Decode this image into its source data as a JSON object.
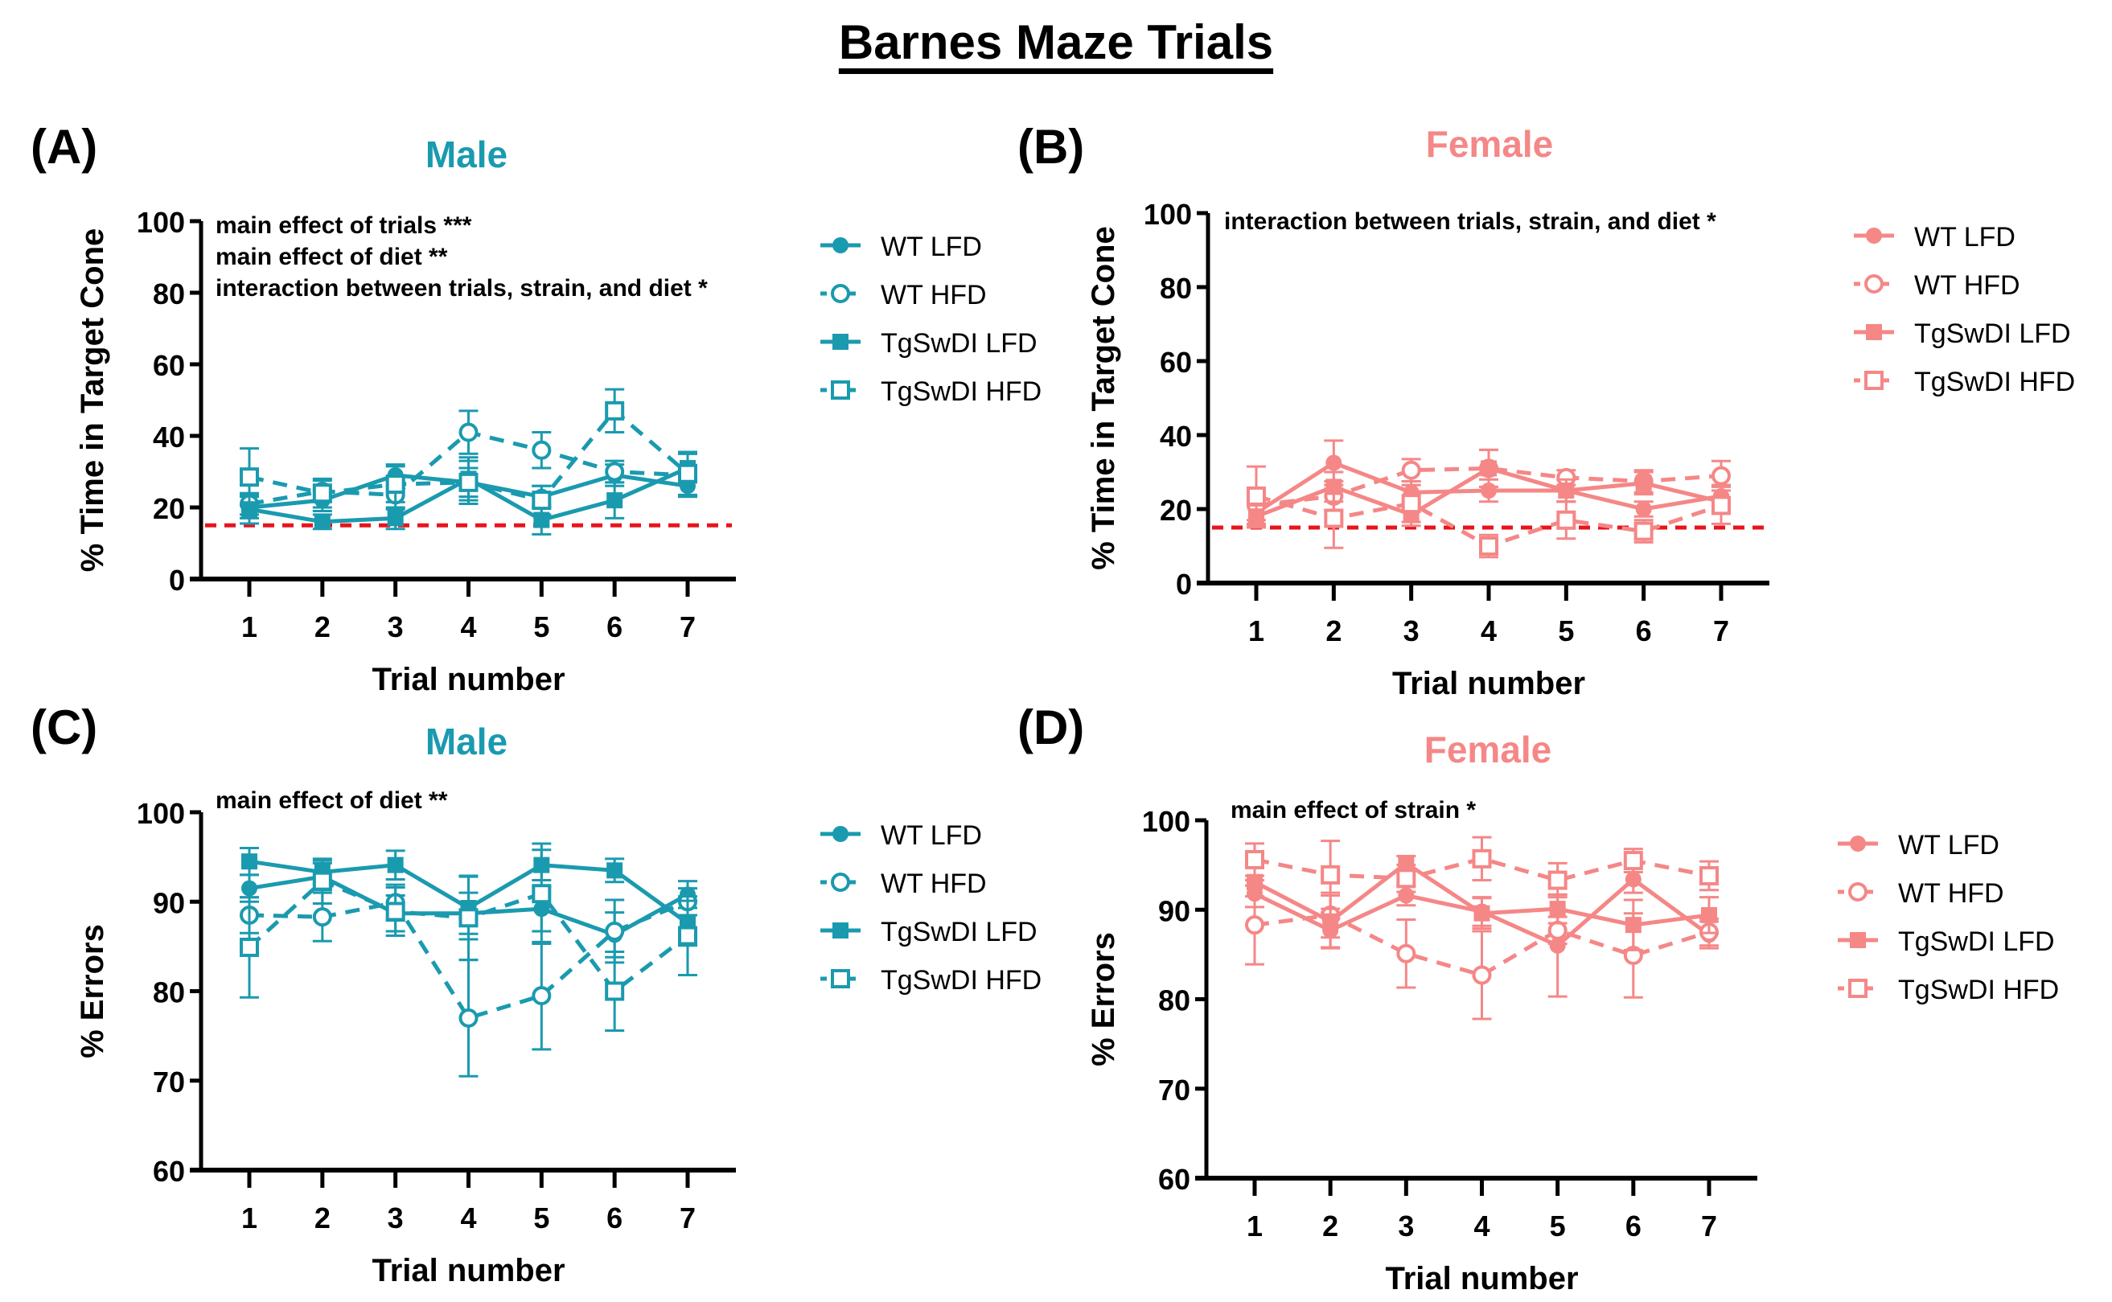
{
  "figure_title": "Barnes Maze Trials",
  "colors": {
    "male": "#1a9aaf",
    "female": "#f58787",
    "chance_line": "#e8141c",
    "axis": "#000000"
  },
  "chart_data": [
    {
      "id": "A",
      "panel_label": "(A)",
      "subtitle": "Male",
      "type": "line",
      "xlabel": "Trial number",
      "ylabel": "% Time in Target Cone",
      "x": [
        1,
        2,
        3,
        4,
        5,
        6,
        7
      ],
      "ylim": [
        0,
        100
      ],
      "yticks": [
        0,
        20,
        40,
        60,
        80,
        100
      ],
      "reference_line": 15,
      "annotations": [
        "main effect of trials ***",
        "main effect of diet **",
        "interaction between trials, strain, and diet *"
      ],
      "legend_position": "right",
      "series": [
        {
          "name": "WT LFD",
          "marker": "filled-circle",
          "line": "solid",
          "values": [
            20,
            22,
            29,
            27,
            23,
            29,
            26
          ],
          "error": [
            3,
            3,
            3,
            4,
            3,
            3,
            3
          ]
        },
        {
          "name": "WT HFD",
          "marker": "open-circle",
          "line": "dashed",
          "values": [
            21,
            24.5,
            23.5,
            41,
            36,
            30,
            29
          ],
          "error": [
            3,
            3,
            4,
            6,
            5,
            3,
            6
          ]
        },
        {
          "name": "TgSwDI LFD",
          "marker": "filled-square",
          "line": "solid",
          "values": [
            19.5,
            16,
            17,
            28,
            16.5,
            22,
            31
          ],
          "error": [
            4,
            2,
            3,
            6,
            4,
            5,
            4
          ]
        },
        {
          "name": "TgSwDI HFD",
          "marker": "open-square",
          "line": "dashed",
          "values": [
            28.5,
            24,
            26.5,
            27,
            22,
            47,
            29.5
          ],
          "error": [
            8,
            4,
            5,
            6,
            4,
            6,
            6
          ]
        }
      ]
    },
    {
      "id": "B",
      "panel_label": "(B)",
      "subtitle": "Female",
      "type": "line",
      "xlabel": "Trial number",
      "ylabel": "% Time in Target Cone",
      "x": [
        1,
        2,
        3,
        4,
        5,
        6,
        7
      ],
      "ylim": [
        0,
        100
      ],
      "yticks": [
        0,
        20,
        40,
        60,
        80,
        100
      ],
      "reference_line": 15,
      "annotations": [
        "interaction between trials, strain, and diet *"
      ],
      "legend_position": "right",
      "series": [
        {
          "name": "WT LFD",
          "marker": "filled-circle",
          "line": "solid",
          "values": [
            19,
            32.5,
            24.5,
            25,
            25,
            20,
            23.5
          ],
          "error": [
            3,
            6,
            3,
            3,
            3,
            2,
            3
          ]
        },
        {
          "name": "WT HFD",
          "marker": "open-circle",
          "line": "dashed",
          "values": [
            21,
            23.5,
            30.5,
            31,
            28.5,
            27.5,
            29
          ],
          "error": [
            4,
            4,
            3,
            5,
            2,
            3,
            4
          ]
        },
        {
          "name": "TgSwDI LFD",
          "marker": "filled-square",
          "line": "solid",
          "values": [
            18,
            26,
            18.5,
            31,
            25,
            27,
            22
          ],
          "error": [
            3,
            4,
            3,
            5,
            3,
            3,
            3
          ]
        },
        {
          "name": "TgSwDI HFD",
          "marker": "open-square",
          "line": "dashed",
          "values": [
            23.5,
            17.5,
            21.5,
            10,
            17,
            14,
            21
          ],
          "error": [
            8,
            8,
            5,
            3,
            5,
            3,
            5
          ]
        }
      ]
    },
    {
      "id": "C",
      "panel_label": "(C)",
      "subtitle": "Male",
      "type": "line",
      "xlabel": "Trial number",
      "ylabel": "% Errors",
      "x": [
        1,
        2,
        3,
        4,
        5,
        6,
        7
      ],
      "ylim": [
        60,
        100
      ],
      "yticks": [
        60,
        70,
        80,
        90,
        100
      ],
      "reference_line": null,
      "annotations": [
        "main effect of diet **"
      ],
      "legend_position": "right",
      "series": [
        {
          "name": "WT LFD",
          "marker": "filled-circle",
          "line": "solid",
          "values": [
            91.5,
            92.8,
            88.7,
            88.7,
            89.2,
            86.3,
            90.8
          ],
          "error": [
            1.5,
            1.5,
            2,
            2.3,
            2.5,
            2.5,
            1.5
          ]
        },
        {
          "name": "WT HFD",
          "marker": "open-circle",
          "line": "dashed",
          "values": [
            88.5,
            88.3,
            89.9,
            77,
            79.5,
            86.7,
            90
          ],
          "error": [
            2,
            2.7,
            2,
            6.5,
            6,
            3.5,
            1.5
          ]
        },
        {
          "name": "TgSwDI LFD",
          "marker": "filled-square",
          "line": "solid",
          "values": [
            94.5,
            93.3,
            94.1,
            89.3,
            94.1,
            93.5,
            87.6
          ],
          "error": [
            1.5,
            1.3,
            1.6,
            3.5,
            1.7,
            1.3,
            2.5
          ]
        },
        {
          "name": "TgSwDI HFD",
          "marker": "open-square",
          "line": "dashed",
          "values": [
            84.9,
            92.3,
            88.9,
            88.2,
            90.9,
            80,
            86.2
          ],
          "error": [
            5.6,
            2.5,
            2.7,
            4.7,
            5.6,
            4.4,
            4.4
          ]
        }
      ]
    },
    {
      "id": "D",
      "panel_label": "(D)",
      "subtitle": "Female",
      "type": "line",
      "xlabel": "Trial number",
      "ylabel": "% Errors",
      "x": [
        1,
        2,
        3,
        4,
        5,
        6,
        7
      ],
      "ylim": [
        60,
        100
      ],
      "yticks": [
        60,
        70,
        80,
        90,
        100
      ],
      "reference_line": null,
      "annotations": [
        "main effect of strain *"
      ],
      "legend_position": "right",
      "series": [
        {
          "name": "WT LFD",
          "marker": "filled-circle",
          "line": "solid",
          "values": [
            91.8,
            87.7,
            91.6,
            89.8,
            86,
            93.4,
            87.2
          ],
          "error": [
            1.5,
            2,
            1.1,
            1.6,
            5.7,
            1.5,
            1.5
          ]
        },
        {
          "name": "WT HFD",
          "marker": "open-circle",
          "line": "dashed",
          "values": [
            88.3,
            89.4,
            85.1,
            82.7,
            87.7,
            84.9,
            87.5
          ],
          "error": [
            4.4,
            2.5,
            3.8,
            4.9,
            1.5,
            4.7,
            1.5
          ]
        },
        {
          "name": "TgSwDI LFD",
          "marker": "filled-square",
          "line": "solid",
          "values": [
            93.1,
            88.7,
            95.2,
            89.6,
            90.1,
            88.3,
            89.4
          ],
          "error": [
            1.6,
            2.9,
            0.8,
            1.7,
            1.6,
            2.8,
            2
          ]
        },
        {
          "name": "TgSwDI HFD",
          "marker": "open-square",
          "line": "dashed",
          "values": [
            95.6,
            93.9,
            93.5,
            95.7,
            93.3,
            95.5,
            93.8
          ],
          "error": [
            1.8,
            3.8,
            1.5,
            2.4,
            1.9,
            1.3,
            1.6
          ]
        }
      ]
    }
  ]
}
